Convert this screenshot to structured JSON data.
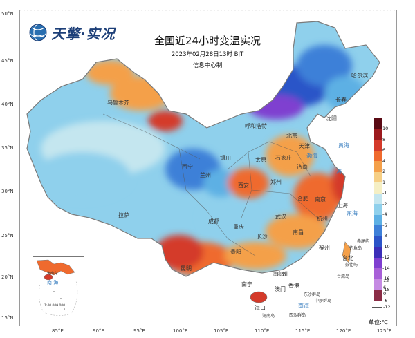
{
  "logo": {
    "text": "天擎·实况",
    "icon": "globe-icon"
  },
  "title": "全国近24小时变温实况",
  "subtitle": "2023年02月28日13时 BJT",
  "center": "信息中心制",
  "latitude_labels": [
    "50°N",
    "45°N",
    "40°N",
    "35°N",
    "30°N",
    "25°N",
    "20°N",
    "15°N"
  ],
  "longitude_labels": [
    "85°E",
    "90°E",
    "95°E",
    "100°E",
    "105°E",
    "110°E",
    "115°E",
    "120°E",
    "125°E"
  ],
  "cities": [
    "乌鲁木齐",
    "哈尔滨",
    "长春",
    "沈阳",
    "呼和浩特",
    "北京",
    "天津",
    "石家庄",
    "太原",
    "济南",
    "银川",
    "兰州",
    "西宁",
    "西安",
    "郑州",
    "合肥",
    "南京",
    "上海",
    "拉萨",
    "成都",
    "重庆",
    "武汉",
    "杭州",
    "长沙",
    "南昌",
    "贵阳",
    "福州",
    "台北",
    "昆明",
    "南宁",
    "广州",
    "香港",
    "澳门",
    "海口"
  ],
  "seas": [
    "渤海",
    "黄海",
    "东海",
    "南海",
    "海"
  ],
  "islands": [
    "钓鱼岛",
    "赤尾屿",
    "彭佳屿",
    "东沙群岛",
    "中沙群岛",
    "西沙群岛",
    "南海岛",
    "台湾岛",
    "海南岛"
  ],
  "inset": {
    "label": "海南岛",
    "scale": "1:40 000 000",
    "sea": "南 海"
  },
  "legend": {
    "labels": [
      "10",
      "8",
      "6",
      "4",
      "2",
      "1",
      "-1",
      "-2",
      "-4",
      "-6",
      "-8",
      "-10",
      "-12",
      "-14",
      "-16",
      "-18"
    ],
    "colors": [
      "#5a0a14",
      "#9c1a1e",
      "#d43a2a",
      "#ef6a2e",
      "#f4a04a",
      "#f6cf85",
      "#f5efc4",
      "#c4e6ef",
      "#8fd0ec",
      "#5db0e4",
      "#3e80d8",
      "#2c54c8",
      "#3c2eb8",
      "#7f3fd0",
      "#a860d8",
      "#c58ae3",
      "#8a2c46"
    ],
    "unit": "单位:℃"
  },
  "contour_legend": [
    {
      "label": "12",
      "color": "#c43030"
    },
    {
      "label": "6",
      "color": "#e07070"
    },
    {
      "label": "0",
      "color": "#999999"
    },
    {
      "label": "-6",
      "color": "#6c8ccc"
    },
    {
      "label": "-12",
      "color": "#555555"
    }
  ]
}
